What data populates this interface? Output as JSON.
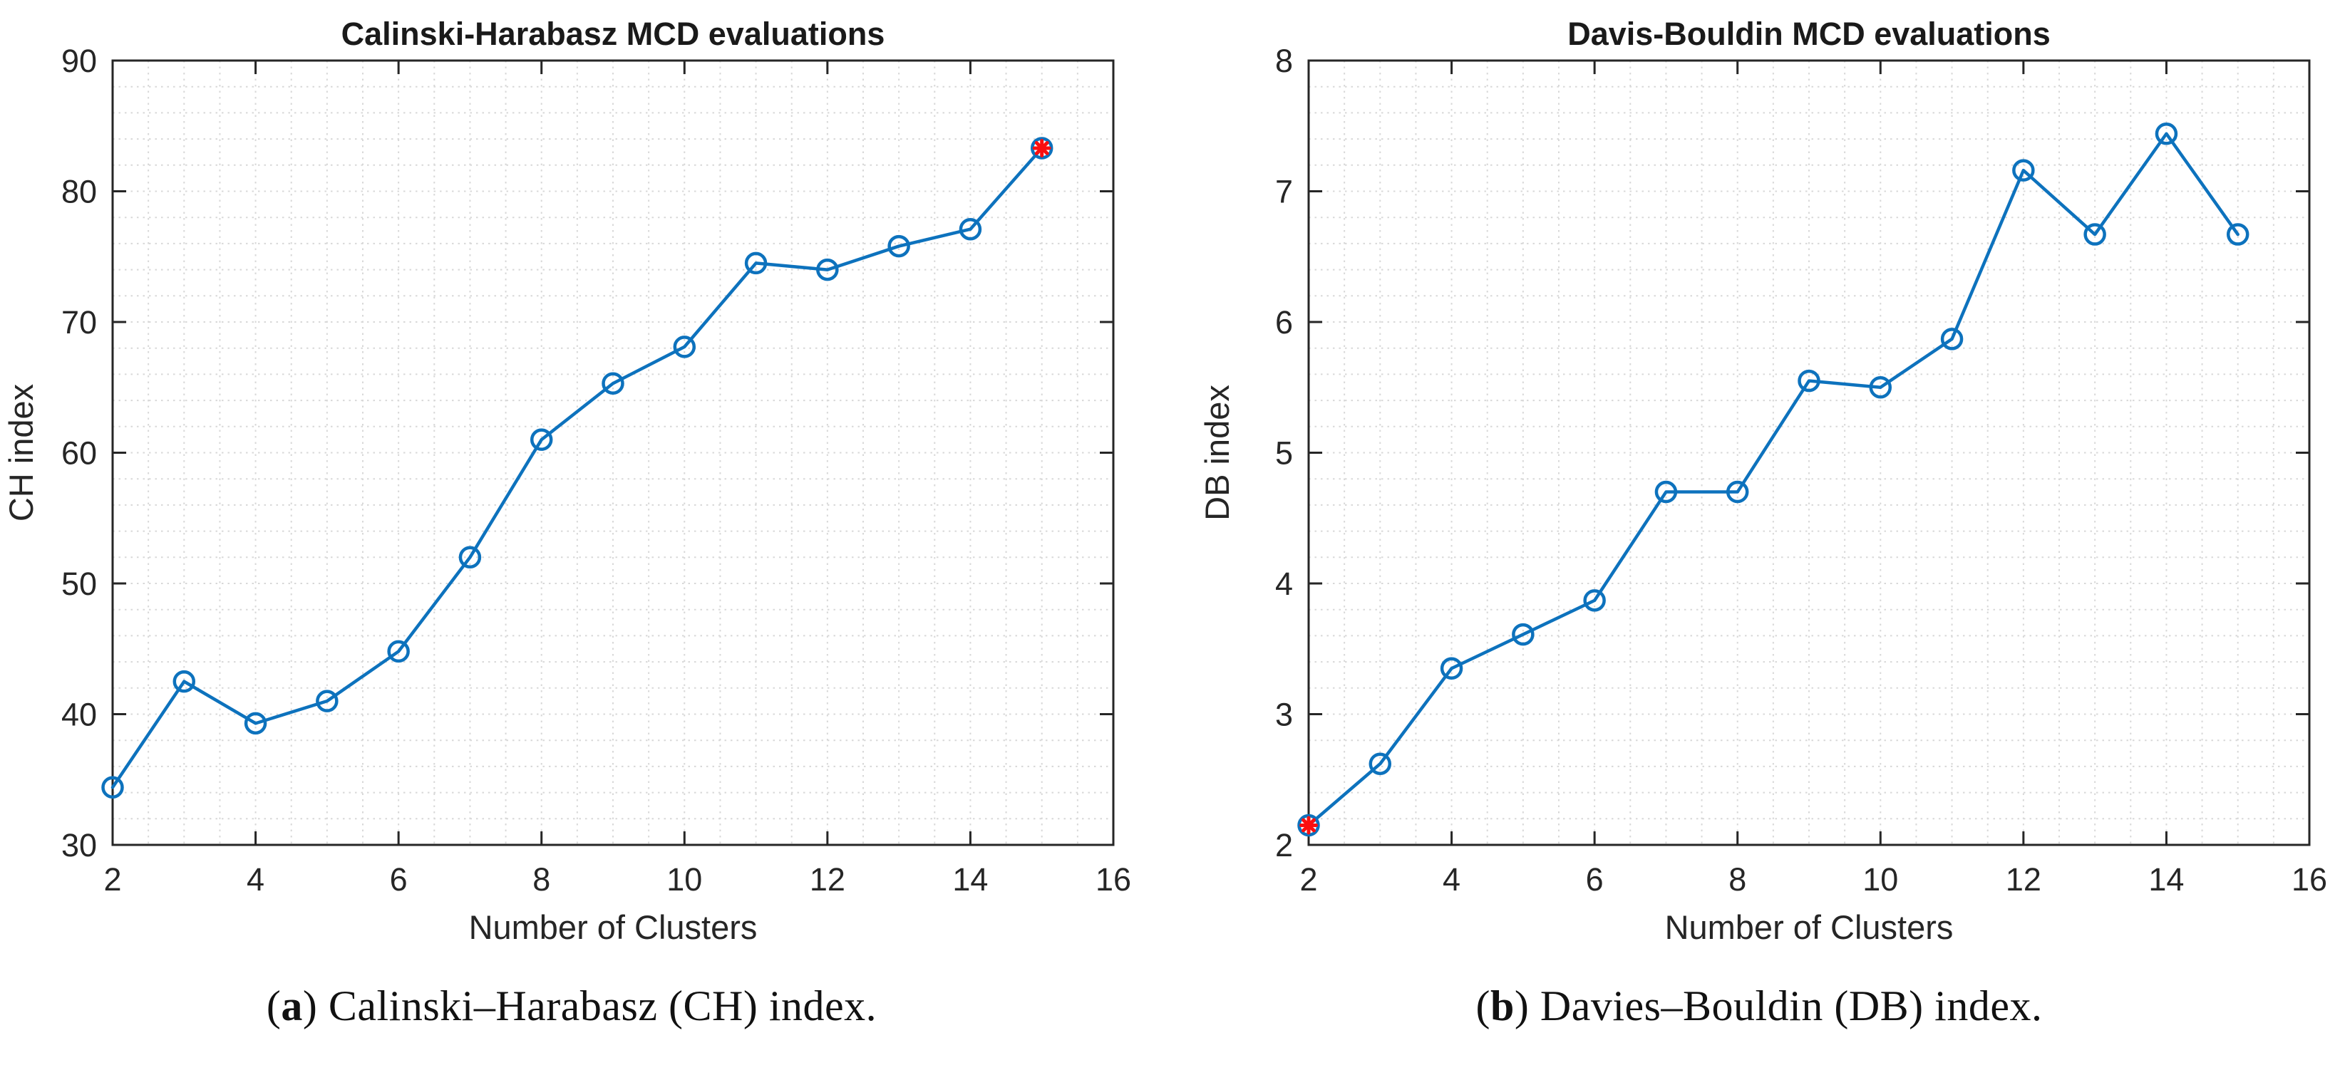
{
  "figure": {
    "captions": [
      {
        "open": "(",
        "letter": "a",
        "rest": ") Calinski–Harabasz (CH) index."
      },
      {
        "open": "(",
        "letter": "b",
        "rest": ") Davies–Bouldin (DB) index."
      }
    ]
  },
  "colors": {
    "line": "#0d72bd",
    "marker": "#0d72bd",
    "best_marker": "#fb0f0f",
    "grid": "#d8d8d8",
    "axis": "#262626",
    "text": "#262626",
    "title": "#1a1a1a"
  },
  "chart_data": [
    {
      "type": "line",
      "title": "Calinski-Harabasz MCD evaluations",
      "xlabel": "Number of Clusters",
      "ylabel": "CH index",
      "x": [
        2,
        3,
        4,
        5,
        6,
        7,
        8,
        9,
        10,
        11,
        12,
        13,
        14,
        15
      ],
      "y": [
        34.4,
        42.5,
        39.3,
        41.0,
        44.8,
        52.0,
        61.0,
        65.3,
        68.1,
        74.5,
        74.0,
        75.8,
        77.1,
        83.3
      ],
      "xlim": [
        2,
        16
      ],
      "ylim": [
        30,
        90
      ],
      "xticks": [
        2,
        4,
        6,
        8,
        10,
        12,
        14,
        16
      ],
      "yticks": [
        30,
        40,
        50,
        60,
        70,
        80,
        90
      ],
      "x_minor_step": 0.5,
      "y_minor_step": 2,
      "grid": "minor-dotted",
      "legend": "none",
      "marker": "open-circle",
      "best_x": 15,
      "best_marker": "red-asterisk-in-circle"
    },
    {
      "type": "line",
      "title": "Davis-Bouldin MCD evaluations",
      "xlabel": "Number of Clusters",
      "ylabel": "DB index",
      "x": [
        2,
        3,
        4,
        5,
        6,
        7,
        8,
        9,
        10,
        11,
        12,
        13,
        14,
        15
      ],
      "y": [
        2.15,
        2.62,
        3.35,
        3.61,
        3.87,
        4.7,
        4.7,
        5.55,
        5.5,
        5.87,
        7.16,
        6.67,
        7.44,
        6.67
      ],
      "xlim": [
        2,
        16
      ],
      "ylim": [
        2,
        8
      ],
      "xticks": [
        2,
        4,
        6,
        8,
        10,
        12,
        14,
        16
      ],
      "yticks": [
        2,
        3,
        4,
        5,
        6,
        7,
        8
      ],
      "x_minor_step": 0.5,
      "y_minor_step": 0.2,
      "grid": "minor-dotted",
      "legend": "none",
      "marker": "open-circle",
      "best_x": 2,
      "best_marker": "red-asterisk-in-circle"
    }
  ]
}
